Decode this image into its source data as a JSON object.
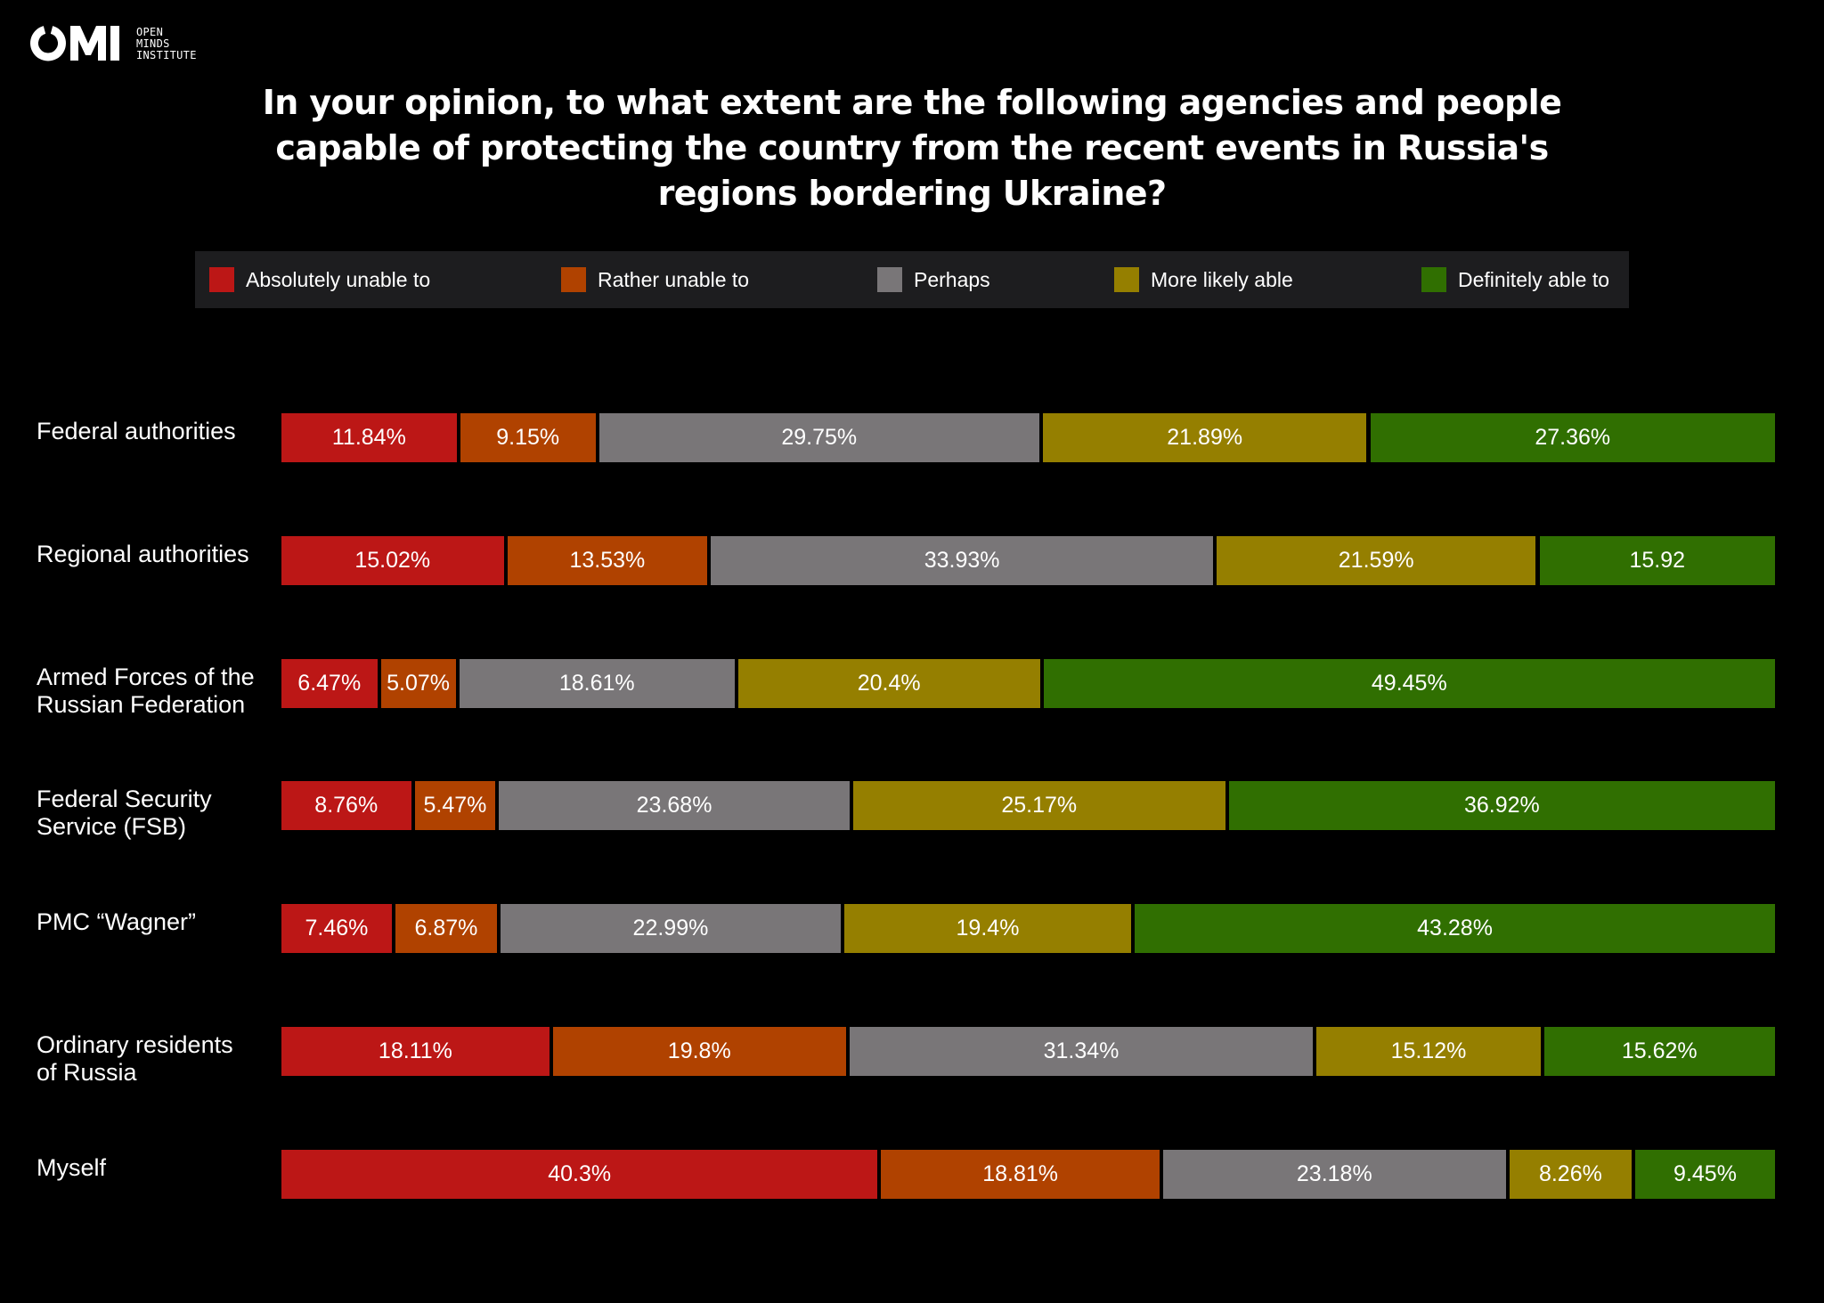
{
  "logo": {
    "letters": "OMI",
    "subtitle_lines": [
      "OPEN",
      "MINDS",
      "INSTITUTE"
    ]
  },
  "chart_data": {
    "type": "bar",
    "orientation": "horizontal",
    "stacked": true,
    "title": [
      "In your opinion, to what extent are the following agencies and people",
      "capable of protecting the country from the recent events in Russia's",
      "regions bordering Ukraine?"
    ],
    "legend_position": "top",
    "grid": false,
    "xlim": [
      0,
      100
    ],
    "categories": [
      [
        "Federal authorities"
      ],
      [
        "Regional authorities"
      ],
      [
        "Armed Forces of the",
        "Russian Federation"
      ],
      [
        "Federal Security",
        "Service (FSB)"
      ],
      [
        "PMC “Wagner”"
      ],
      [
        "Ordinary residents",
        "of Russia"
      ],
      [
        "Myself"
      ]
    ],
    "series": [
      {
        "name": "Absolutely unable to",
        "color": "#bc1716",
        "values": [
          11.84,
          15.02,
          6.47,
          8.76,
          7.46,
          18.11,
          40.3
        ],
        "value_labels": [
          "11.84%",
          "15.02%",
          "6.47%",
          "8.76%",
          "7.46%",
          "18.11%",
          "40.3%"
        ]
      },
      {
        "name": "Rather unable to",
        "color": "#b04200",
        "values": [
          9.15,
          13.53,
          5.07,
          5.47,
          6.87,
          19.8,
          18.81
        ],
        "value_labels": [
          "9.15%",
          "13.53%",
          "5.07%",
          "5.47%",
          "6.87%",
          "19.8%",
          "18.81%"
        ]
      },
      {
        "name": "Perhaps",
        "color": "#797678",
        "values": [
          29.75,
          33.93,
          18.61,
          23.68,
          22.99,
          31.34,
          23.18
        ],
        "value_labels": [
          "29.75%",
          "33.93%",
          "18.61%",
          "23.68%",
          "22.99%",
          "31.34%",
          "23.18%"
        ]
      },
      {
        "name": "More likely able",
        "color": "#957f00",
        "values": [
          21.89,
          21.59,
          20.4,
          25.17,
          19.4,
          15.12,
          8.26
        ],
        "value_labels": [
          "21.89%",
          "21.59%",
          "20.4%",
          "25.17%",
          "19.4%",
          "15.12%",
          "8.26%"
        ]
      },
      {
        "name": "Definitely able to",
        "color": "#306f01",
        "values": [
          27.36,
          15.92,
          49.45,
          36.92,
          43.28,
          15.62,
          9.45
        ],
        "value_labels": [
          "27.36%",
          "15.92",
          "49.45%",
          "36.92%",
          "43.28%",
          "15.62%",
          "9.45%"
        ]
      }
    ]
  }
}
